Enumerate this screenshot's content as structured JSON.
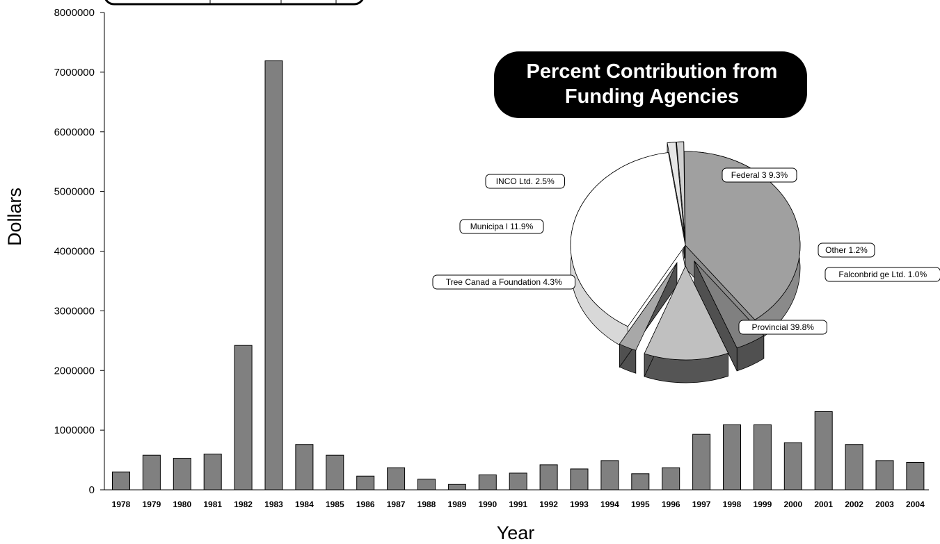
{
  "chart_data": [
    {
      "type": "bar",
      "xlabel": "Year",
      "ylabel": "Dollars",
      "ylim": [
        0,
        8000000
      ],
      "yticks": [
        "0",
        "1000000",
        "2000000",
        "3000000",
        "4000000",
        "5000000",
        "6000000",
        "7000000",
        "8000000"
      ],
      "categories": [
        "1978",
        "1979",
        "1980",
        "1981",
        "1982",
        "1983",
        "1984",
        "1985",
        "1986",
        "1987",
        "1988",
        "1989",
        "1990",
        "1991",
        "1992",
        "1993",
        "1994",
        "1995",
        "1996",
        "1997",
        "1998",
        "1999",
        "2000",
        "2001",
        "2002",
        "2003",
        "2004"
      ],
      "values": [
        300000,
        580000,
        530000,
        600000,
        2420000,
        7190000,
        760000,
        580000,
        230000,
        370000,
        180000,
        90000,
        250000,
        280000,
        420000,
        350000,
        490000,
        270000,
        370000,
        930000,
        1090000,
        1090000,
        790000,
        1310000,
        760000,
        490000,
        460000
      ],
      "bar_color": "#808080",
      "grid": false
    },
    {
      "type": "pie",
      "title_lines": [
        "Percent Contribution from",
        "Funding Agencies"
      ],
      "slices": [
        {
          "label": "Federal 3 9.3%",
          "value": 39.3,
          "color": "#ffffff",
          "side": "#d8d8d8"
        },
        {
          "label": "Other 1.2%",
          "value": 1.2,
          "color": "#e6e6e6",
          "side": "#9a9a9a"
        },
        {
          "label": "Falconbrid ge Ltd. 1.0%",
          "value": 1.0,
          "color": "#d0d0d0",
          "side": "#606060"
        },
        {
          "label": "Provincial  39.8%",
          "value": 39.8,
          "color": "#a0a0a0",
          "side": "#8a8a8a"
        },
        {
          "label": "Tree Canad a Foundation  4.3%",
          "value": 4.3,
          "color": "#808080",
          "side": "#505050"
        },
        {
          "label": "Municipa l 11.9%",
          "value": 11.9,
          "color": "#c0c0c0",
          "side": "#555555"
        },
        {
          "label": "INCO Ltd.  2.5%",
          "value": 2.5,
          "color": "#a8a8a8",
          "side": "#505050"
        }
      ]
    }
  ]
}
